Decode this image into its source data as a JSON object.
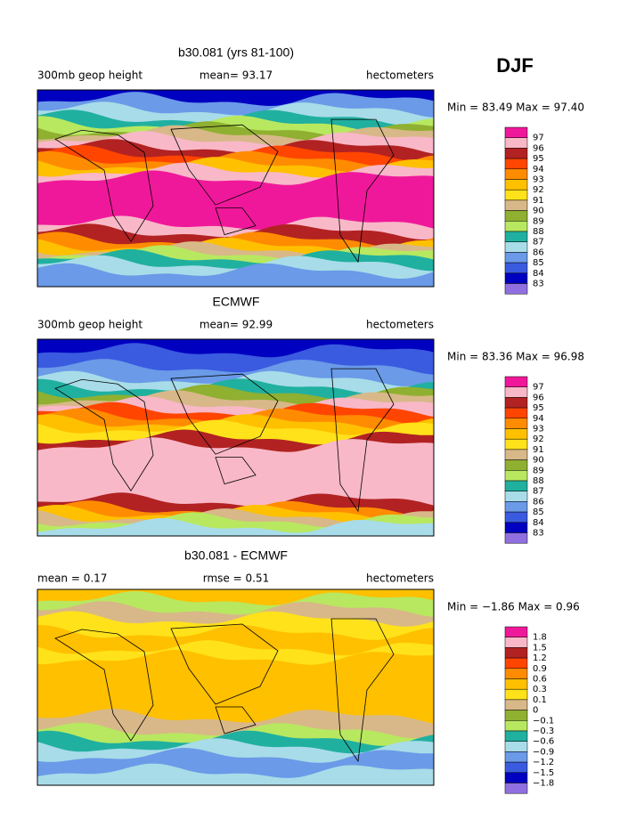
{
  "header": "DJF",
  "panels": [
    {
      "title": "b30.081 (yrs 81-100)",
      "left": "300mb geop height",
      "center": "mean=  93.17",
      "right": "hectometers",
      "minmax": "Min =  83.49 Max =  97.40",
      "levels": [
        "97",
        "96",
        "95",
        "94",
        "93",
        "92",
        "91",
        "90",
        "89",
        "88",
        "87",
        "86",
        "85",
        "84",
        "83"
      ]
    },
    {
      "title": "ECMWF",
      "left": "300mb geop height",
      "center": "mean=  92.99",
      "right": "hectometers",
      "minmax": "Min =  83.36 Max =  96.98",
      "levels": [
        "97",
        "96",
        "95",
        "94",
        "93",
        "92",
        "91",
        "90",
        "89",
        "88",
        "87",
        "86",
        "85",
        "84",
        "83"
      ]
    },
    {
      "title": "b30.081 - ECMWF",
      "left": "mean =    0.17",
      "center": "rmse =    0.51",
      "right": "hectometers",
      "minmax": "Min = −1.86 Max =    0.96",
      "levels": [
        "1.8",
        "1.5",
        "1.2",
        "0.9",
        "0.6",
        "0.3",
        "0.1",
        "0",
        "−0.1",
        "−0.3",
        "−0.6",
        "−0.9",
        "−1.2",
        "−1.5",
        "−1.8"
      ]
    }
  ]
}
